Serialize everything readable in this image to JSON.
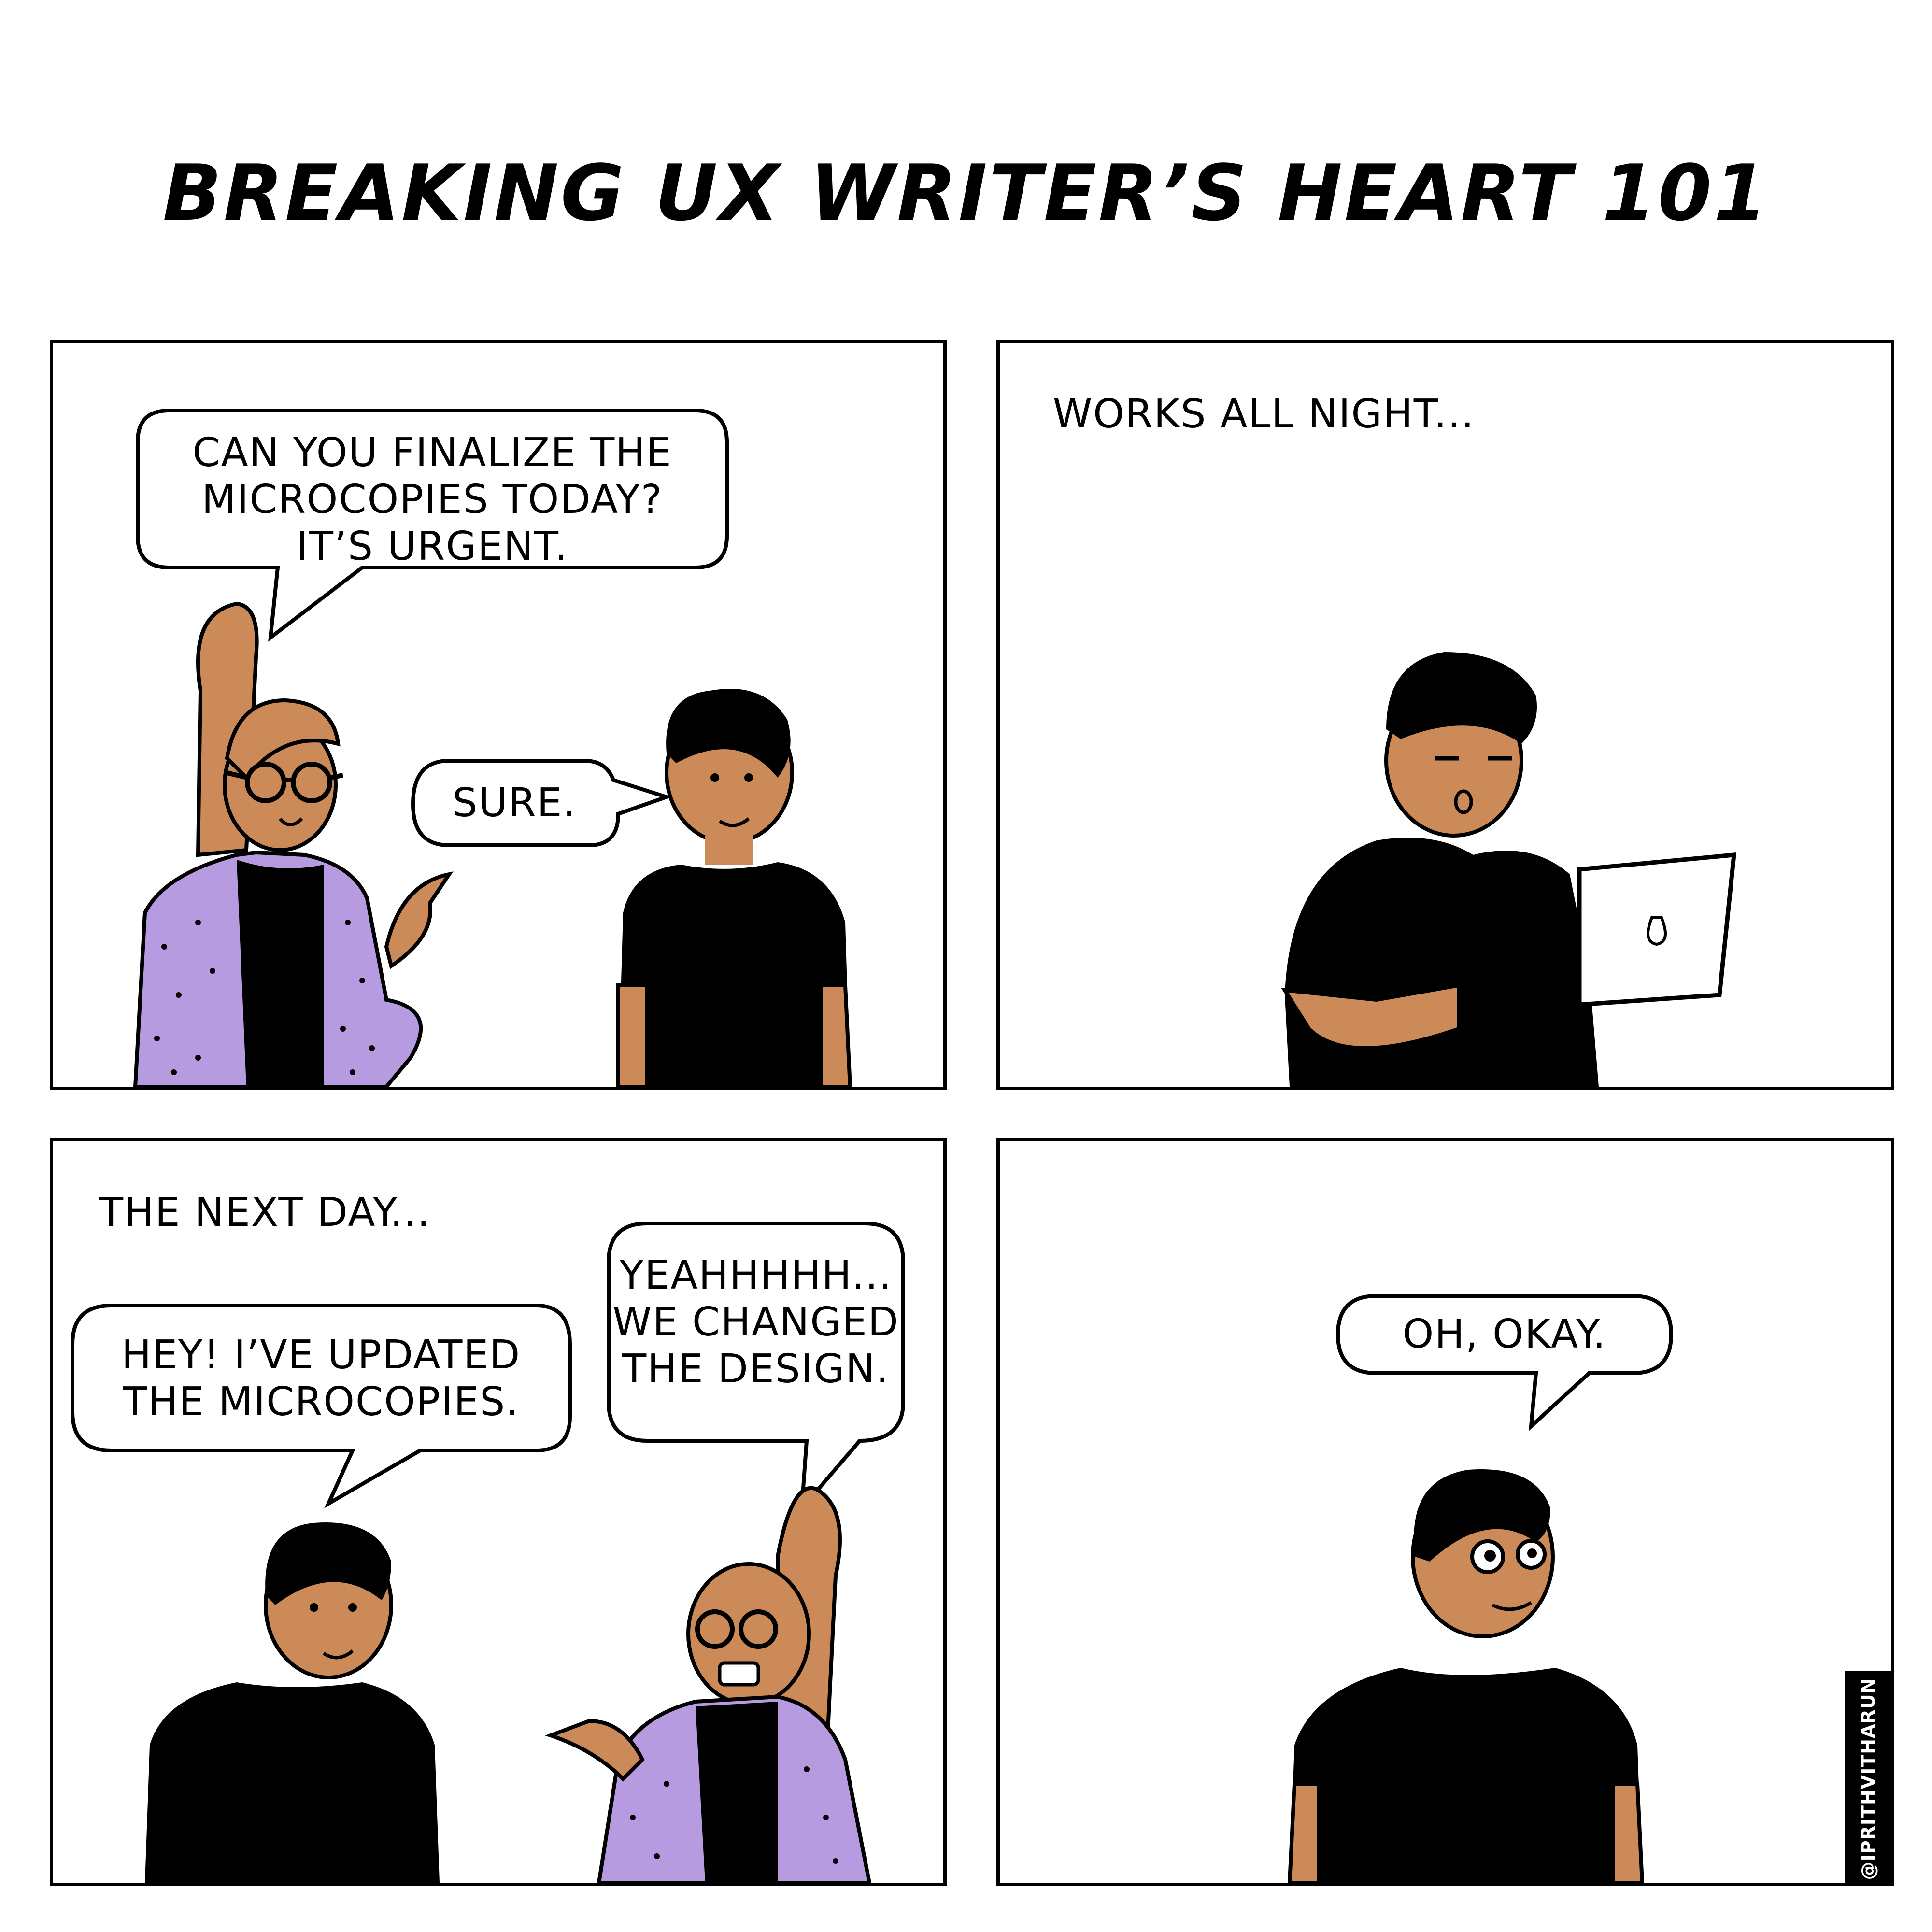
{
  "title": "BREAKING UX WRITER’S HEART 101",
  "panels": [
    {
      "bubbles": [
        "CAN YOU FINALIZE THE\nMICROCOPIES TODAY?\nIT’S URGENT.",
        "SURE."
      ]
    },
    {
      "caption": "WORKS ALL NIGHT..."
    },
    {
      "caption": "THE NEXT DAY...",
      "bubbles": [
        "HEY! I’VE UPDATED\nTHE MICROCOPIES.",
        "YEAHHHHH...\nWE CHANGED\nTHE DESIGN."
      ]
    },
    {
      "bubbles": [
        "OH, OKAY."
      ]
    }
  ],
  "credit": "@IPRITHVITHARUN",
  "colors": {
    "skin": "#cc8a58",
    "cardigan": "#b79be0",
    "shirt": "#000000",
    "laptop": "#ffffff"
  }
}
